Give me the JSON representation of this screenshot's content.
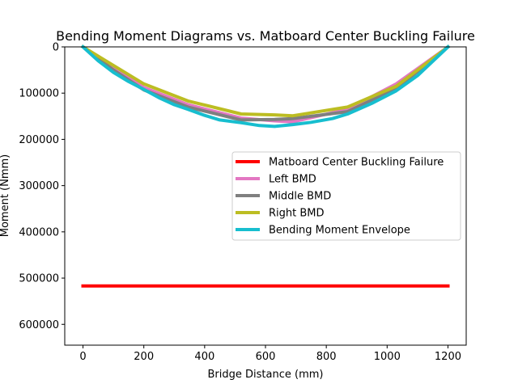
{
  "chart_data": {
    "type": "line",
    "title": "Bending Moment Diagrams vs. Matboard Center Buckling Failure",
    "xlabel": "Bridge Distance (mm)",
    "ylabel": "Moment (Nmm)",
    "xlim": [
      -60,
      1260
    ],
    "ylim": [
      645000,
      0
    ],
    "y_inverted": true,
    "xticks": [
      0,
      200,
      400,
      600,
      800,
      1000,
      1200
    ],
    "yticks": [
      0,
      100000,
      200000,
      300000,
      400000,
      500000,
      600000
    ],
    "grid": false,
    "legend_position": "center-right",
    "series": [
      {
        "name": "Matboard Center Buckling Failure",
        "color": "#ff0000",
        "x": [
          0,
          1200
        ],
        "y": [
          517000,
          517000
        ]
      },
      {
        "name": "Left BMD",
        "color": "#e377c2",
        "x": [
          0,
          100,
          200,
          345,
          520,
          630,
          690,
          870,
          1030,
          1200
        ],
        "y": [
          0,
          45000,
          88000,
          125000,
          154000,
          160000,
          162000,
          135000,
          80000,
          0
        ]
      },
      {
        "name": "Middle BMD",
        "color": "#7f7f7f",
        "x": [
          0,
          100,
          200,
          345,
          520,
          630,
          690,
          870,
          1030,
          1200
        ],
        "y": [
          0,
          50000,
          93000,
          130000,
          158000,
          157000,
          155000,
          140000,
          90000,
          0
        ]
      },
      {
        "name": "Right BMD",
        "color": "#bcbd22",
        "x": [
          0,
          100,
          200,
          345,
          520,
          630,
          690,
          870,
          1030,
          1200
        ],
        "y": [
          0,
          40000,
          80000,
          117000,
          145000,
          147000,
          149000,
          130000,
          85000,
          0
        ]
      },
      {
        "name": "Bending Moment Envelope",
        "color": "#17becf",
        "x": [
          0,
          50,
          100,
          150,
          200,
          250,
          300,
          345,
          400,
          450,
          520,
          580,
          630,
          690,
          750,
          820,
          870,
          950,
          1030,
          1100,
          1200
        ],
        "y": [
          0,
          30000,
          55000,
          75000,
          92000,
          110000,
          125000,
          135000,
          148000,
          158000,
          164000,
          170000,
          172000,
          168000,
          163000,
          155000,
          145000,
          122000,
          95000,
          62000,
          0
        ]
      }
    ]
  }
}
